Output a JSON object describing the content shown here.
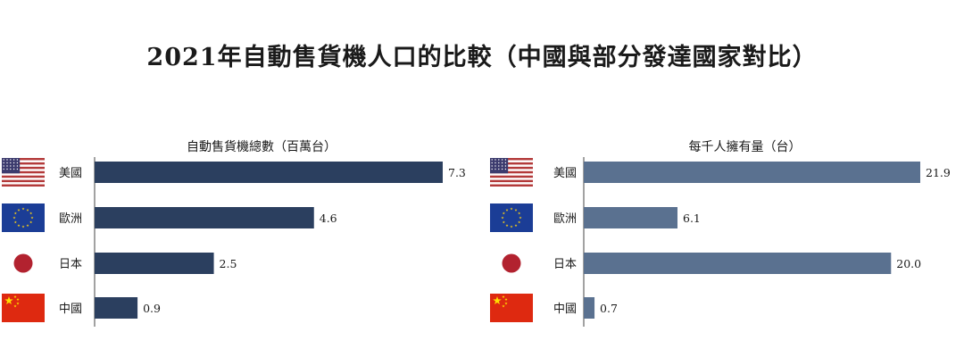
{
  "title": "2021年自動售貨機人口的比較（中國與部分發達國家對比）",
  "colors": {
    "left_bar": "#2b3f5f",
    "right_bar": "#5a7190",
    "japan_red": "#b2222f",
    "eu_blue": "#1b3d96",
    "eu_star": "#f5cc17",
    "us_red": "#b33a3a",
    "us_blue": "#3c3b6e",
    "cn_red": "#de2910",
    "cn_star": "#ffde00"
  },
  "countries": [
    {
      "name": "美國",
      "flag": "us-flag-icon"
    },
    {
      "name": "歐洲",
      "flag": "eu-flag-icon"
    },
    {
      "name": "日本",
      "flag": "japan-flag-icon"
    },
    {
      "name": "中國",
      "flag": "china-flag-icon"
    }
  ],
  "chart_data": [
    {
      "type": "bar",
      "orientation": "horizontal",
      "title": "自動售貨機總數（百萬台）",
      "categories": [
        "美國",
        "歐洲",
        "日本",
        "中國"
      ],
      "values": [
        7.3,
        4.6,
        2.5,
        0.9
      ],
      "value_labels": [
        "7.3",
        "4.6",
        "2.5",
        "0.9"
      ],
      "xlim": [
        0,
        7.3
      ],
      "grid": false
    },
    {
      "type": "bar",
      "orientation": "horizontal",
      "title": "每千人擁有量（台）",
      "categories": [
        "美國",
        "歐洲",
        "日本",
        "中國"
      ],
      "values": [
        21.9,
        6.1,
        20.0,
        0.7
      ],
      "value_labels": [
        "21.9",
        "6.1",
        "20.0",
        "0.7"
      ],
      "xlim": [
        0,
        21.9
      ],
      "grid": false
    }
  ]
}
